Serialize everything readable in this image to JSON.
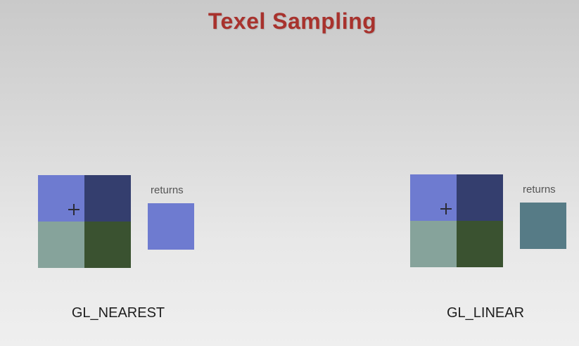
{
  "title": "Texel Sampling",
  "panels": [
    {
      "mode": "GL_NEAREST",
      "returns_label": "returns",
      "texels": {
        "top_left": "#6e7bd0",
        "top_right": "#343e6e",
        "bottom_left": "#86a39b",
        "bottom_right": "#3a5230"
      },
      "result_color": "#6e7bd0"
    },
    {
      "mode": "GL_LINEAR",
      "returns_label": "returns",
      "texels": {
        "top_left": "#6e7bd0",
        "top_right": "#343e6e",
        "bottom_left": "#86a39b",
        "bottom_right": "#3a5230"
      },
      "result_color": "#567b86"
    }
  ],
  "colors": {
    "title": "#a8322d",
    "crosshair": "#2b2b36"
  },
  "icons": {
    "sample_point": "crosshair-icon"
  }
}
